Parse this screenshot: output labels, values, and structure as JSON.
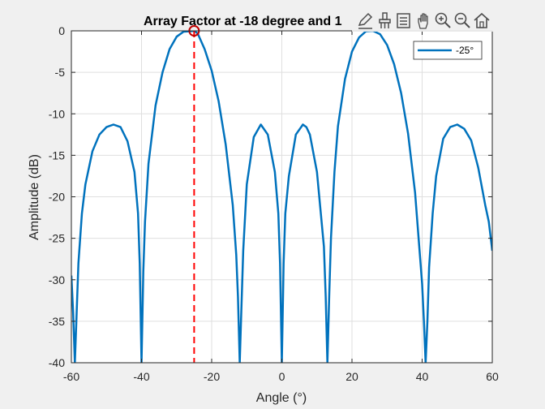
{
  "window": {
    "background": "#f0f0f0"
  },
  "toolbar": {
    "items": [
      {
        "name": "edit-plot-icon"
      },
      {
        "name": "brush-icon"
      },
      {
        "name": "data-tips-icon"
      },
      {
        "name": "pan-icon"
      },
      {
        "name": "zoom-in-icon"
      },
      {
        "name": "zoom-out-icon"
      },
      {
        "name": "home-icon"
      }
    ],
    "icon_color": "#4d4d4d"
  },
  "chart_data": {
    "type": "line",
    "title": "Array Factor at -18 degree and 1",
    "xlabel": "Angle (°)",
    "ylabel": "Amplitude (dB)",
    "xlim": [
      -60,
      60
    ],
    "ylim": [
      -40,
      0
    ],
    "xticks": [
      -60,
      -40,
      -20,
      0,
      20,
      40,
      60
    ],
    "xtick_labels": [
      "-60",
      "-40",
      "-20",
      "0",
      "20",
      "40",
      "60"
    ],
    "yticks": [
      0,
      -5,
      -10,
      -15,
      -20,
      -25,
      -30,
      -35,
      -40
    ],
    "ytick_labels": [
      "0",
      "-5",
      "-10",
      "-15",
      "-20",
      "-25",
      "-30",
      "-35",
      "-40"
    ],
    "grid": true,
    "legend": {
      "position": "top-right",
      "entries": [
        "-25°"
      ]
    },
    "series": [
      {
        "name": "-25°",
        "color": "#0072bd",
        "x": [
          -60,
          -59.5,
          -59,
          -58.5,
          -58,
          -57,
          -56,
          -54,
          -52,
          -50,
          -48,
          -46,
          -44,
          -42,
          -41,
          -40.5,
          -40,
          -39.5,
          -39,
          -38,
          -36,
          -34,
          -32,
          -30,
          -28,
          -26,
          -25,
          -24,
          -22,
          -20,
          -18,
          -16,
          -14,
          -13,
          -12.5,
          -12,
          -11.5,
          -11,
          -10,
          -8,
          -6,
          -4,
          -2,
          -1,
          -0.5,
          0,
          0.5,
          1,
          2,
          4,
          6,
          7,
          8,
          10,
          12,
          12.5,
          13,
          13.5,
          14,
          15,
          16,
          18,
          20,
          22,
          24,
          26,
          28,
          30,
          32,
          34,
          36,
          38,
          40,
          40.5,
          41,
          41.5,
          42,
          43,
          44,
          46,
          48,
          50,
          52,
          54,
          56,
          58,
          59,
          60
        ],
        "y": [
          -29.5,
          -34,
          -40,
          -34,
          -28,
          -22,
          -18.5,
          -14.5,
          -12.5,
          -11.6,
          -11.3,
          -11.6,
          -13.3,
          -17,
          -22,
          -28,
          -40,
          -29,
          -23,
          -16,
          -9,
          -5,
          -2.2,
          -0.7,
          -0.1,
          -0.05,
          0,
          -0.3,
          -2.2,
          -4.8,
          -8.5,
          -13.7,
          -21,
          -27,
          -32,
          -40,
          -33,
          -26.5,
          -18.5,
          -12.8,
          -11.3,
          -12.5,
          -17,
          -22,
          -28,
          -40,
          -28,
          -22,
          -17.5,
          -12.5,
          -11.3,
          -11.6,
          -12.5,
          -17,
          -26,
          -32,
          -40,
          -32,
          -25,
          -17,
          -11.5,
          -5.8,
          -2.5,
          -0.8,
          -0.05,
          0,
          -0.4,
          -1.7,
          -4,
          -7.5,
          -12.4,
          -19.5,
          -30.5,
          -35,
          -40,
          -35,
          -28.5,
          -22,
          -17.5,
          -13,
          -11.6,
          -11.3,
          -11.8,
          -13.2,
          -16.5,
          -21,
          -23,
          -26.5
        ]
      }
    ],
    "annotations": [
      {
        "type": "vline",
        "x": -25,
        "style": "dashed",
        "color": "#ff0000"
      },
      {
        "type": "marker",
        "x": -25,
        "y": 0,
        "shape": "circle",
        "color": "#c00000"
      }
    ]
  }
}
